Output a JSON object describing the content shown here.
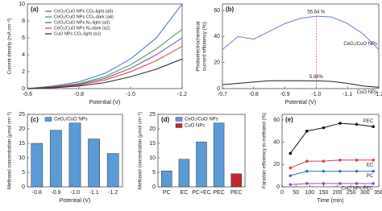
{
  "chart_data": [
    {
      "type": "line",
      "label": "(a)",
      "xlabel": "Potential (V)",
      "ylabel": "Current density (mA cm⁻²)",
      "x": [
        -0.6,
        -0.7,
        -0.8,
        -0.9,
        -1.0,
        -1.1,
        -1.2
      ],
      "xlim": [
        -0.6,
        -1.2
      ],
      "xticks": [
        -0.6,
        -0.8,
        {
          "value": -1.0,
          "label": "-1.0"
        },
        -1.2
      ],
      "ylim": [
        0,
        10
      ],
      "yticks": [
        0,
        2,
        4,
        6,
        8,
        10
      ],
      "legend": "upper left",
      "series": [
        {
          "name": "CeO₂/CuO NPs CO₂-light (a5)",
          "color": "#3a6fc4",
          "values": [
            0,
            0.3,
            0.8,
            1.8,
            3.5,
            6,
            10
          ]
        },
        {
          "name": "CeO₂/CuO NPs CO₂-dark (a4)",
          "color": "#3e9a4c",
          "values": [
            0,
            0.2,
            0.6,
            1.4,
            2.8,
            4.7,
            7
          ]
        },
        {
          "name": "CeO₂/CuO NPs N₂-light (a3)",
          "color": "#7b3fa0",
          "values": [
            0,
            0.2,
            0.5,
            1.2,
            2.4,
            4,
            6
          ]
        },
        {
          "name": "CeO₂/CuO NPs N₂-dark (a2)",
          "color": "#d23b3b",
          "values": [
            0,
            0.15,
            0.4,
            1,
            2,
            3.3,
            5
          ]
        },
        {
          "name": "CuO NPs CO₂-light (a1)",
          "color": "#222222",
          "values": [
            0,
            0.1,
            0.3,
            0.7,
            1.4,
            2.3,
            3.5
          ]
        }
      ]
    },
    {
      "type": "line",
      "label": "(b)",
      "xlabel": "Potential (V)",
      "ylabel": [
        "Photoelectrochemical",
        "current efficiency (%)"
      ],
      "x": [
        -0.7,
        -0.75,
        -0.8,
        -0.85,
        -0.9,
        -0.95,
        -1.0,
        -1.05,
        -1.1,
        -1.15,
        -1.2
      ],
      "xlim": [
        -0.7,
        -1.2
      ],
      "xticks": [
        -0.7,
        -0.8,
        -0.9,
        {
          "value": -1.0,
          "label": "-1.0"
        },
        -1.1,
        -1.2
      ],
      "ylim": [
        0,
        65
      ],
      "yticks": [
        0,
        20,
        40,
        60
      ],
      "legend": "inline",
      "series": [
        {
          "name": "CeO₂/CuO NPs",
          "color": "#6a7fd0",
          "values": [
            30,
            40,
            38,
            44,
            50,
            54,
            55.64,
            55,
            50,
            42,
            30
          ],
          "value_labels": [
            null,
            null,
            null,
            null,
            null,
            null,
            "55.64 %",
            null,
            null,
            null,
            null
          ]
        },
        {
          "name": "CuO NPs",
          "color": "#222222",
          "values": [
            3,
            4,
            5,
            6,
            6,
            6,
            5.98,
            5.5,
            4,
            2,
            1
          ],
          "value_labels": [
            null,
            null,
            null,
            null,
            null,
            null,
            "5.98%",
            null,
            null,
            null,
            null
          ]
        }
      ]
    },
    {
      "type": "bar",
      "label": "(c)",
      "xlabel": "Potential (V)",
      "ylabel": "Methanol concentration (μmol cm⁻²)",
      "categories": [
        "-0.8",
        "-0.9",
        "-1.0",
        "-1.1",
        "-1.2"
      ],
      "ylim": [
        0,
        25
      ],
      "yticks": [
        0,
        5,
        10,
        15,
        20,
        25
      ],
      "legend": "upper left",
      "series": [
        {
          "name": "CeO₂/CuO NPs",
          "color": "#5b9bd5",
          "values": [
            15,
            19.5,
            22,
            16.5,
            11.5
          ]
        }
      ]
    },
    {
      "type": "bar",
      "label": "(d)",
      "ylabel": "Methanol concentration (μmol cm⁻²)",
      "categories": [
        "PC",
        "EC",
        "PC+EC",
        "PEC",
        "PEC"
      ],
      "ylim": [
        0,
        25
      ],
      "yticks": [
        0,
        5,
        10,
        15,
        20,
        25
      ],
      "legend": "upper left",
      "series": [
        {
          "name": "CeO₂/CuO NPs",
          "color": "#5b9bd5",
          "values": [
            5.5,
            9.5,
            15.5,
            22,
            null
          ]
        },
        {
          "name": "CuO NPs",
          "color": "#c0282e",
          "values": [
            null,
            null,
            null,
            null,
            4.5
          ]
        }
      ]
    },
    {
      "type": "line",
      "label": "(e)",
      "xlabel": "Time (min)",
      "ylabel": "Faradaic efficiency to methanol (%)",
      "markers": true,
      "x": [
        30,
        90,
        150,
        210,
        270,
        330
      ],
      "xlim": [
        0,
        350
      ],
      "xticks": [
        0,
        50,
        100,
        150,
        200,
        250,
        300,
        350
      ],
      "ylim": [
        0,
        65
      ],
      "yticks": [
        0,
        20,
        40,
        60
      ],
      "legend": "inline",
      "series": [
        {
          "name": "PEC",
          "color": "#111111",
          "values": [
            30,
            50,
            53,
            57,
            56,
            54
          ]
        },
        {
          "name": "EC",
          "color": "#e0403a",
          "values": [
            17,
            23,
            23,
            24,
            24,
            24
          ]
        },
        {
          "name": "PC",
          "color": "#3a6fc4",
          "values": [
            10,
            14,
            14,
            14,
            14,
            14
          ]
        },
        {
          "name": "CuO NPs-PEC",
          "color": "#9b4fc0",
          "values": [
            2,
            3,
            3,
            3,
            3,
            3
          ]
        }
      ]
    }
  ]
}
